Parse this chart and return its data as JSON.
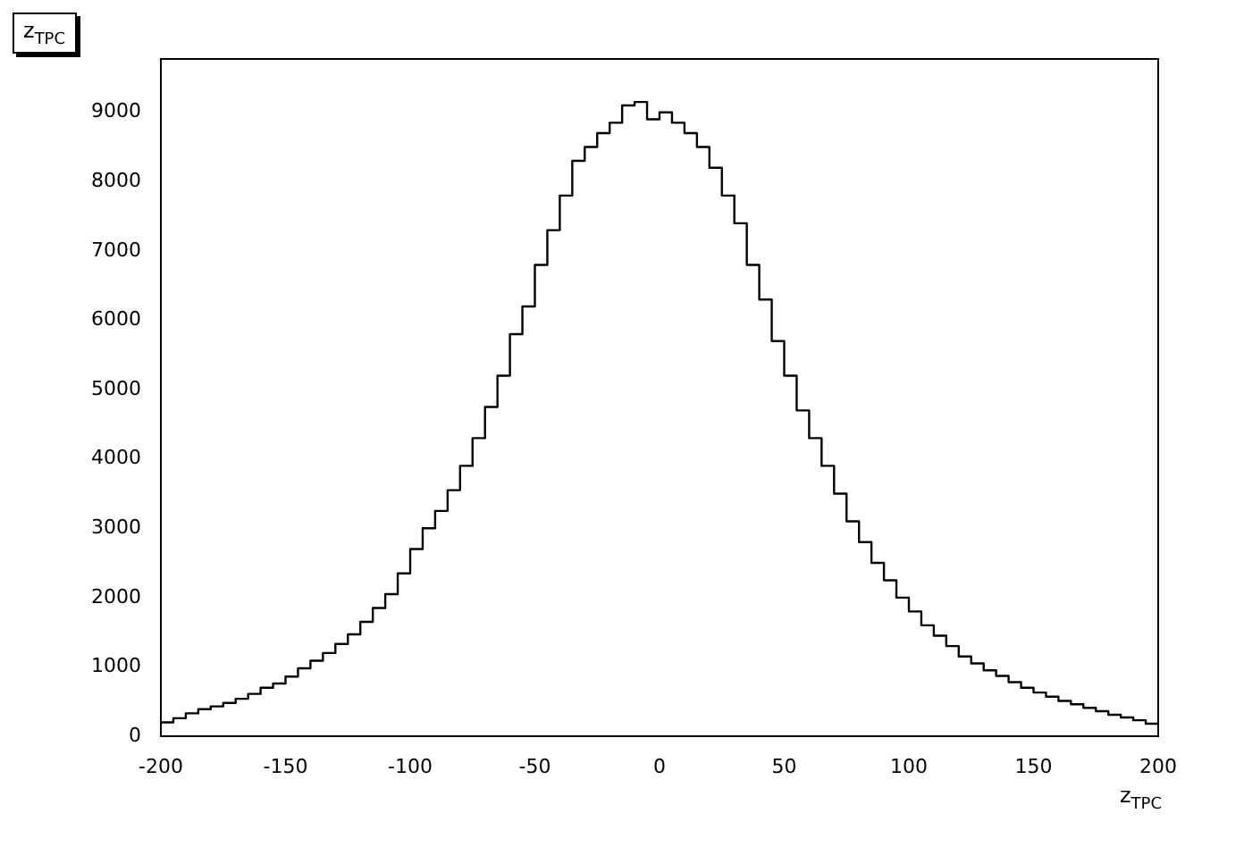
{
  "chart_data": {
    "type": "histogram",
    "title": "z$_{TPC}$",
    "xlabel": "z$_{TPC}$",
    "bins": [
      -200,
      -195,
      -190,
      -185,
      -180,
      -175,
      -170,
      -165,
      -160,
      -155,
      -150,
      -145,
      -140,
      -135,
      -130,
      -125,
      -120,
      -115,
      -110,
      -105,
      -100,
      -95,
      -90,
      -85,
      -80,
      -75,
      -70,
      -65,
      -60,
      -55,
      -50,
      -45,
      -40,
      -35,
      -30,
      -25,
      -20,
      -15,
      -10,
      -5,
      0,
      5,
      10,
      15,
      20,
      25,
      30,
      35,
      40,
      45,
      50,
      55,
      60,
      65,
      70,
      75,
      80,
      85,
      90,
      95,
      100,
      105,
      110,
      115,
      120,
      125,
      130,
      135,
      140,
      145,
      150,
      155,
      160,
      165,
      170,
      175,
      180,
      185,
      190,
      195,
      200
    ],
    "values": [
      200,
      260,
      330,
      390,
      430,
      480,
      540,
      610,
      700,
      760,
      860,
      980,
      1090,
      1200,
      1330,
      1470,
      1650,
      1850,
      2050,
      2350,
      2700,
      3000,
      3250,
      3550,
      3900,
      4300,
      4750,
      5200,
      5800,
      6200,
      6800,
      7300,
      7800,
      8300,
      8500,
      8700,
      8850,
      9100,
      9150,
      8900,
      9000,
      8850,
      8700,
      8500,
      8200,
      7800,
      7400,
      6800,
      6300,
      5700,
      5200,
      4700,
      4300,
      3900,
      3500,
      3100,
      2800,
      2500,
      2250,
      2000,
      1800,
      1600,
      1450,
      1300,
      1150,
      1050,
      950,
      870,
      780,
      700,
      630,
      570,
      510,
      460,
      410,
      360,
      310,
      270,
      230,
      180
    ],
    "color": "#000000",
    "xlim": [
      -200,
      200
    ],
    "xticks": [
      -200,
      -150,
      -100,
      -50,
      0,
      50,
      100,
      150,
      200
    ],
    "ylim": [
      0,
      9770
    ],
    "yticks": [
      0,
      1000,
      2000,
      3000,
      4000,
      5000,
      6000,
      7000,
      8000,
      9000
    ],
    "grid": false,
    "legend": false
  }
}
